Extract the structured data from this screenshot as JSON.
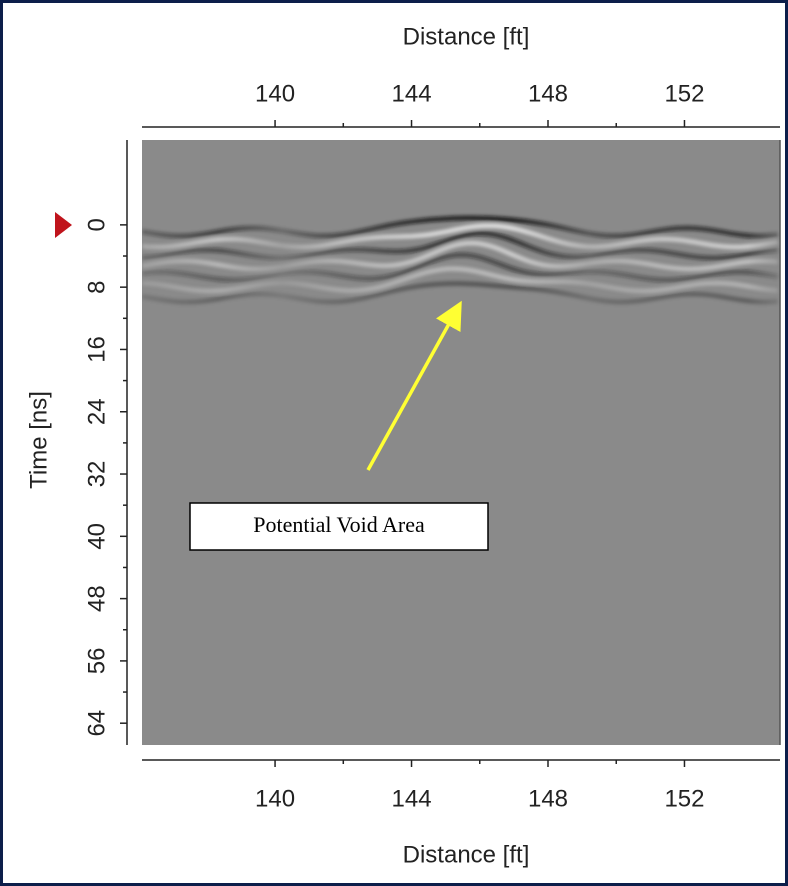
{
  "chart_data": {
    "type": "radargram",
    "title": "Distance [ft]",
    "xlabel": "Distance [ft]",
    "ylabel": "Time [ns]",
    "annotation": "Potential Void Area",
    "xlim": [
      136.1,
      154.8
    ],
    "xticks": [
      140,
      144,
      148,
      152
    ],
    "ylim": [
      -10.9,
      66.8
    ],
    "yticks": [
      0,
      8,
      16,
      24,
      32,
      40,
      48,
      56,
      64
    ],
    "color": "#8a8a8a"
  }
}
